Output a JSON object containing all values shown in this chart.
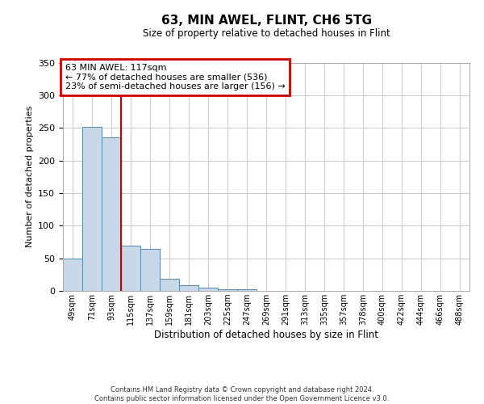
{
  "title": "63, MIN AWEL, FLINT, CH6 5TG",
  "subtitle": "Size of property relative to detached houses in Flint",
  "xlabel": "Distribution of detached houses by size in Flint",
  "ylabel": "Number of detached properties",
  "bin_labels": [
    "49sqm",
    "71sqm",
    "93sqm",
    "115sqm",
    "137sqm",
    "159sqm",
    "181sqm",
    "203sqm",
    "225sqm",
    "247sqm",
    "269sqm",
    "291sqm",
    "313sqm",
    "335sqm",
    "357sqm",
    "378sqm",
    "400sqm",
    "422sqm",
    "444sqm",
    "466sqm",
    "488sqm"
  ],
  "bar_heights": [
    50,
    252,
    236,
    70,
    65,
    18,
    9,
    5,
    3,
    2,
    0,
    0,
    0,
    0,
    0,
    0,
    0,
    0,
    0,
    0,
    0
  ],
  "bar_color": "#c8d8e8",
  "bar_edge_color": "#5588aa",
  "vline_x": 3,
  "vline_color": "#cc0000",
  "ylim": [
    0,
    350
  ],
  "yticks": [
    0,
    50,
    100,
    150,
    200,
    250,
    300,
    350
  ],
  "annotation_title": "63 MIN AWEL: 117sqm",
  "annotation_line1": "← 77% of detached houses are smaller (536)",
  "annotation_line2": "23% of semi-detached houses are larger (156) →",
  "annotation_box_color": "#cc0000",
  "footer1": "Contains HM Land Registry data © Crown copyright and database right 2024.",
  "footer2": "Contains public sector information licensed under the Open Government Licence v3.0.",
  "background_color": "#ffffff",
  "grid_color": "#cccccc"
}
